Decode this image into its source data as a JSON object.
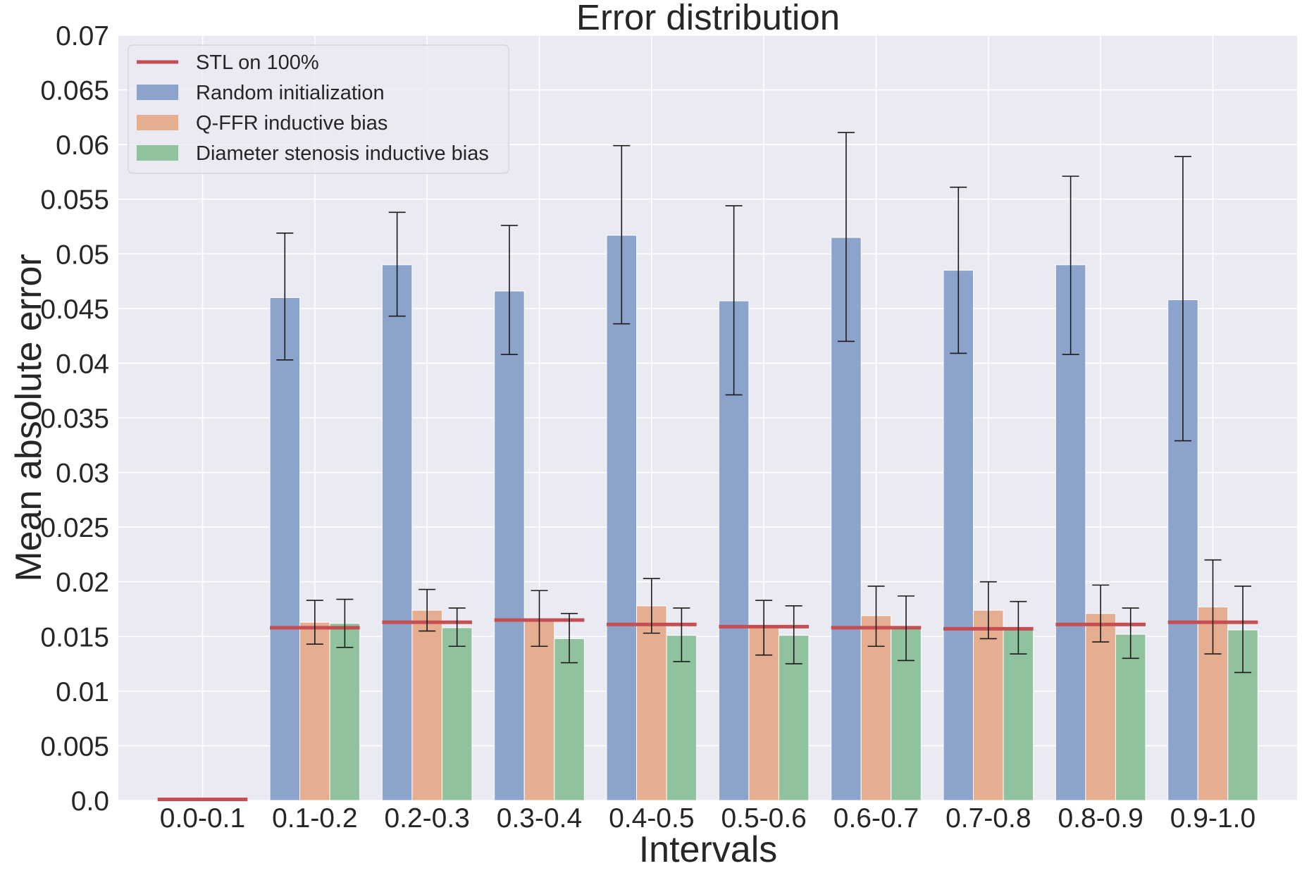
{
  "chart_data": {
    "type": "bar",
    "title": "Error distribution",
    "xlabel": "Intervals",
    "ylabel": "Mean absolute error",
    "ylim": [
      0,
      0.07
    ],
    "yticks": [
      "0.0",
      "0.005",
      "0.01",
      "0.015",
      "0.02",
      "0.025",
      "0.03",
      "0.035",
      "0.04",
      "0.045",
      "0.05",
      "0.055",
      "0.06",
      "0.065",
      "0.07"
    ],
    "categories": [
      "0.0-0.1",
      "0.1-0.2",
      "0.2-0.3",
      "0.3-0.4",
      "0.4-0.5",
      "0.5-0.6",
      "0.6-0.7",
      "0.7-0.8",
      "0.8-0.9",
      "0.9-1.0"
    ],
    "grid": true,
    "legend_position": "top-left",
    "series": [
      {
        "name": "Random initialization",
        "kind": "bar",
        "color": "#8ca4cc",
        "values": [
          0.0,
          0.046,
          0.049,
          0.0466,
          0.0517,
          0.0457,
          0.0515,
          0.0485,
          0.049,
          0.0458
        ],
        "error_low": [
          null,
          0.0403,
          0.0443,
          0.0408,
          0.0436,
          0.0371,
          0.042,
          0.0409,
          0.0408,
          0.0329
        ],
        "error_high": [
          null,
          0.0519,
          0.0538,
          0.0526,
          0.0599,
          0.0544,
          0.0611,
          0.0561,
          0.0571,
          0.0589
        ]
      },
      {
        "name": "Q-FFR inductive bias",
        "kind": "bar",
        "color": "#e5ae90",
        "values": [
          0.0,
          0.0163,
          0.0174,
          0.0166,
          0.0178,
          0.0159,
          0.0169,
          0.0174,
          0.0171,
          0.0177
        ],
        "error_low": [
          null,
          0.0143,
          0.0155,
          0.0141,
          0.0153,
          0.0133,
          0.0141,
          0.0148,
          0.0145,
          0.0134
        ],
        "error_high": [
          null,
          0.0183,
          0.0193,
          0.0192,
          0.0203,
          0.0183,
          0.0196,
          0.02,
          0.0197,
          0.022
        ]
      },
      {
        "name": "Diameter stenosis inductive bias",
        "kind": "bar",
        "color": "#8fc29d",
        "values": [
          0.0,
          0.0162,
          0.0158,
          0.0148,
          0.0151,
          0.0151,
          0.0157,
          0.0158,
          0.0152,
          0.0156
        ],
        "error_low": [
          null,
          0.014,
          0.0141,
          0.0126,
          0.0127,
          0.0125,
          0.0128,
          0.0134,
          0.013,
          0.0117
        ],
        "error_high": [
          null,
          0.0184,
          0.0176,
          0.0171,
          0.0176,
          0.0178,
          0.0187,
          0.0182,
          0.0176,
          0.0196
        ]
      },
      {
        "name": "STL on 100%",
        "kind": "line",
        "color": "#c44e52",
        "values": [
          0.0001,
          0.0158,
          0.0163,
          0.0165,
          0.0161,
          0.0159,
          0.0158,
          0.0157,
          0.0161,
          0.0163
        ]
      }
    ]
  }
}
